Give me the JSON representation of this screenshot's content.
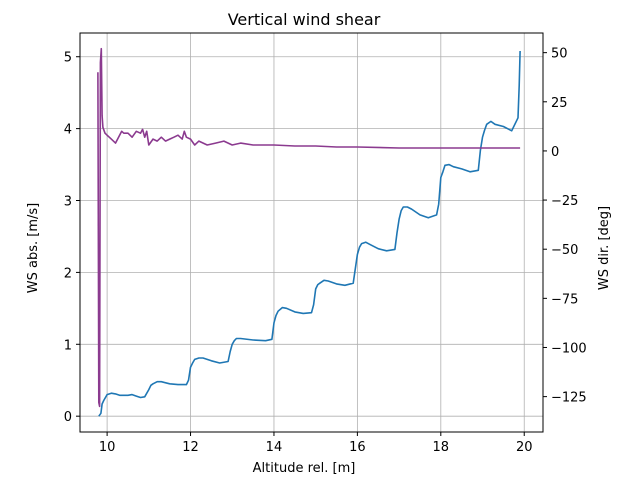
{
  "chart_data": {
    "type": "line",
    "title": "Vertical wind shear",
    "xlabel": "Altitude rel. [m]",
    "ylabel": "WS abs. [m/s]",
    "ylabel_right": "WS dir. [deg]",
    "xlim": [
      9.35,
      20.45
    ],
    "ylim": [
      -0.22,
      5.33
    ],
    "ylim_right": [
      -143,
      60
    ],
    "xticks": [
      10,
      12,
      14,
      16,
      18,
      20
    ],
    "yticks": [
      0,
      1,
      2,
      3,
      4,
      5
    ],
    "yticks_right": [
      50,
      25,
      0,
      -25,
      -50,
      -75,
      -100,
      -125
    ],
    "grid": true,
    "series": [
      {
        "axis": "left",
        "color": "#1f77b4",
        "x": [
          9.8,
          9.85,
          9.88,
          9.92,
          10.0,
          10.1,
          10.2,
          10.3,
          10.5,
          10.6,
          10.7,
          10.8,
          10.9,
          11.0,
          11.05,
          11.1,
          11.2,
          11.3,
          11.5,
          11.7,
          11.9,
          11.95,
          12.0,
          12.05,
          12.1,
          12.2,
          12.3,
          12.5,
          12.7,
          12.9,
          12.95,
          13.0,
          13.05,
          13.1,
          13.2,
          13.5,
          13.8,
          13.95,
          14.0,
          14.05,
          14.1,
          14.2,
          14.3,
          14.5,
          14.7,
          14.9,
          14.95,
          15.0,
          15.05,
          15.1,
          15.2,
          15.3,
          15.5,
          15.7,
          15.9,
          15.95,
          16.0,
          16.05,
          16.1,
          16.2,
          16.3,
          16.5,
          16.7,
          16.9,
          16.95,
          17.0,
          17.05,
          17.1,
          17.2,
          17.3,
          17.5,
          17.7,
          17.9,
          17.95,
          18.0,
          18.05,
          18.1,
          18.2,
          18.3,
          18.5,
          18.7,
          18.9,
          18.95,
          19.0,
          19.05,
          19.1,
          19.2,
          19.3,
          19.5,
          19.7,
          19.85,
          19.88,
          19.9
        ],
        "y": [
          0.0,
          0.04,
          0.17,
          0.22,
          0.3,
          0.32,
          0.31,
          0.29,
          0.29,
          0.3,
          0.28,
          0.26,
          0.27,
          0.37,
          0.43,
          0.45,
          0.48,
          0.48,
          0.45,
          0.44,
          0.44,
          0.5,
          0.68,
          0.74,
          0.79,
          0.81,
          0.81,
          0.77,
          0.74,
          0.76,
          0.9,
          1.0,
          1.05,
          1.08,
          1.08,
          1.06,
          1.05,
          1.07,
          1.3,
          1.4,
          1.46,
          1.51,
          1.5,
          1.45,
          1.43,
          1.44,
          1.55,
          1.77,
          1.83,
          1.85,
          1.89,
          1.88,
          1.84,
          1.82,
          1.85,
          2.05,
          2.25,
          2.35,
          2.4,
          2.42,
          2.39,
          2.33,
          2.3,
          2.32,
          2.55,
          2.74,
          2.86,
          2.91,
          2.91,
          2.88,
          2.8,
          2.76,
          2.8,
          2.95,
          3.32,
          3.4,
          3.49,
          3.5,
          3.47,
          3.44,
          3.4,
          3.42,
          3.7,
          3.88,
          3.98,
          4.06,
          4.1,
          4.06,
          4.03,
          3.97,
          4.15,
          4.6,
          5.08
        ]
      },
      {
        "axis": "right",
        "color": "#8b3a8f",
        "x": [
          9.78,
          9.8,
          9.82,
          9.84,
          9.86,
          9.88,
          9.9,
          9.95,
          10.0,
          10.1,
          10.2,
          10.3,
          10.35,
          10.4,
          10.5,
          10.6,
          10.7,
          10.8,
          10.85,
          10.9,
          10.95,
          11.0,
          11.1,
          11.2,
          11.3,
          11.4,
          11.5,
          11.6,
          11.7,
          11.8,
          11.85,
          11.9,
          12.0,
          12.1,
          12.2,
          12.4,
          12.6,
          12.8,
          13.0,
          13.2,
          13.5,
          13.8,
          14.0,
          14.5,
          15.0,
          15.5,
          16.0,
          17.0,
          18.0,
          19.0,
          19.9
        ],
        "y": [
          40.0,
          -128.0,
          -130.0,
          45.0,
          52.0,
          18.0,
          12.0,
          9.0,
          8.0,
          6.0,
          4.0,
          8.0,
          10.0,
          9.0,
          9.0,
          7.0,
          10.0,
          9.0,
          11.0,
          7.0,
          10.0,
          3.0,
          6.0,
          5.0,
          7.0,
          5.0,
          6.0,
          7.0,
          8.0,
          6.0,
          10.0,
          7.0,
          6.0,
          3.0,
          5.0,
          3.0,
          4.0,
          5.0,
          3.0,
          4.0,
          3.0,
          3.0,
          3.0,
          2.5,
          2.5,
          2.0,
          2.0,
          1.5,
          1.5,
          1.5,
          1.5
        ]
      }
    ]
  }
}
